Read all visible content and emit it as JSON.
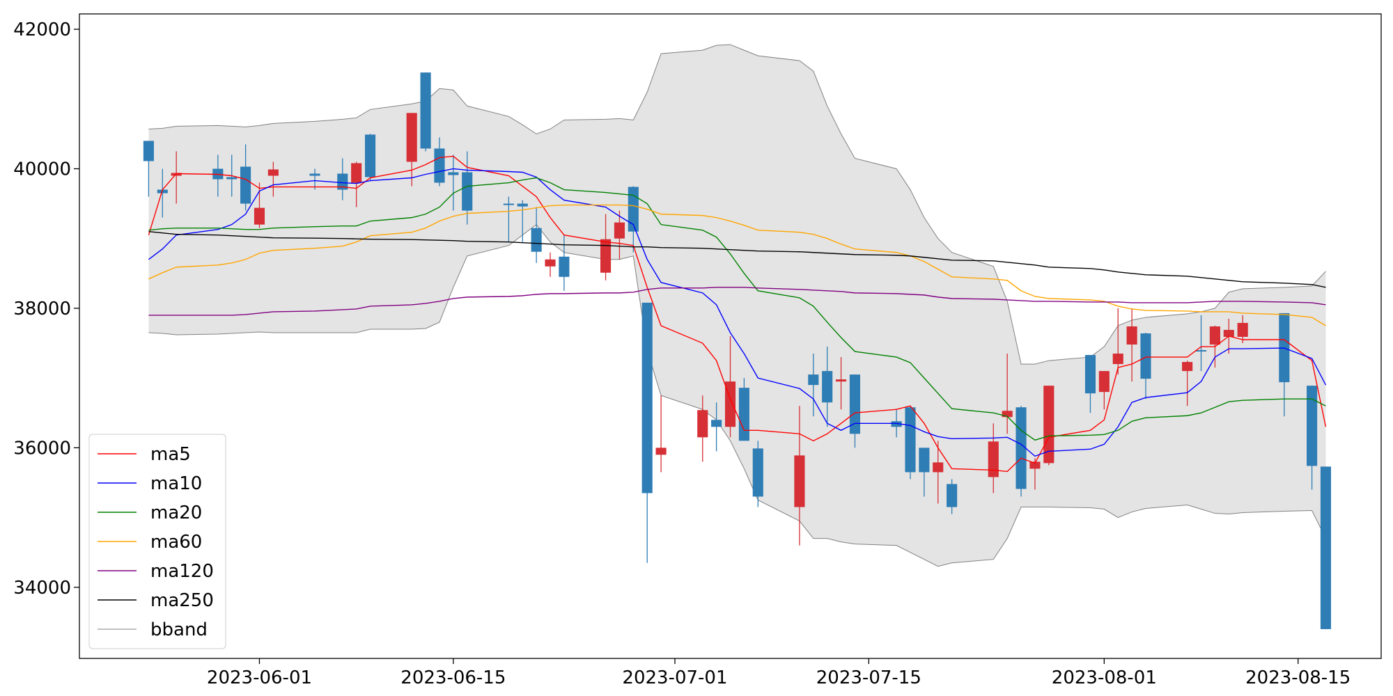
{
  "chart_data": {
    "type": "candlestick",
    "x": [
      "2023-05-24",
      "2023-05-25",
      "2023-05-26",
      "2023-05-29",
      "2023-05-30",
      "2023-05-31",
      "2023-06-01",
      "2023-06-02",
      "2023-06-05",
      "2023-06-07",
      "2023-06-08",
      "2023-06-09",
      "2023-06-12",
      "2023-06-13",
      "2023-06-14",
      "2023-06-15",
      "2023-06-16",
      "2023-06-19",
      "2023-06-20",
      "2023-06-21",
      "2023-06-22",
      "2023-06-23",
      "2023-06-26",
      "2023-06-27",
      "2023-06-28",
      "2023-06-29",
      "2023-06-30",
      "2023-07-03",
      "2023-07-04",
      "2023-07-05",
      "2023-07-06",
      "2023-07-07",
      "2023-07-10",
      "2023-07-11",
      "2023-07-12",
      "2023-07-13",
      "2023-07-14",
      "2023-07-17",
      "2023-07-18",
      "2023-07-19",
      "2023-07-20",
      "2023-07-21",
      "2023-07-24",
      "2023-07-25",
      "2023-07-26",
      "2023-07-27",
      "2023-07-28",
      "2023-07-31",
      "2023-08-01",
      "2023-08-02",
      "2023-08-03",
      "2023-08-04",
      "2023-08-07",
      "2023-08-08",
      "2023-08-09",
      "2023-08-10",
      "2023-08-11",
      "2023-08-14",
      "2023-08-16",
      "2023-08-17"
    ],
    "open": [
      40400,
      39700,
      39900,
      40000,
      39880,
      40030,
      39200,
      39900,
      39930,
      39930,
      39800,
      40490,
      40100,
      41380,
      40290,
      39950,
      39950,
      39500,
      39500,
      39150,
      38600,
      38740,
      38510,
      39000,
      39740,
      38080,
      35900,
      36150,
      36400,
      36300,
      36860,
      35990,
      35150,
      37050,
      37100,
      36950,
      37050,
      36380,
      36580,
      36000,
      35650,
      35480,
      35580,
      36440,
      36580,
      35700,
      35780,
      37330,
      36800,
      37200,
      37480,
      37640,
      37100,
      37400,
      37480,
      37590,
      37590,
      37930,
      36890,
      35730
    ],
    "high": [
      40400,
      40000,
      40250,
      40200,
      40200,
      40350,
      39800,
      40100,
      40000,
      40150,
      40100,
      40500,
      40800,
      41380,
      40450,
      40200,
      40250,
      39600,
      39550,
      39450,
      38800,
      39050,
      39350,
      39400,
      39750,
      38080,
      36750,
      36750,
      36650,
      37600,
      37000,
      36100,
      36600,
      37350,
      37450,
      37300,
      37050,
      36550,
      36600,
      36000,
      36100,
      35550,
      36350,
      37350,
      36600,
      35850,
      36890,
      37330,
      37100,
      38000,
      38000,
      37650,
      37250,
      37900,
      37750,
      37850,
      37900,
      37930,
      36890,
      35730
    ],
    "low": [
      39600,
      39300,
      39500,
      39600,
      39600,
      39400,
      39150,
      39600,
      39700,
      39550,
      39450,
      39830,
      39750,
      40250,
      39750,
      39400,
      39200,
      38950,
      38950,
      38650,
      38450,
      38250,
      38400,
      38700,
      38800,
      34350,
      35650,
      35800,
      35950,
      36150,
      36100,
      35150,
      34600,
      36450,
      36300,
      36550,
      36000,
      36150,
      35550,
      35300,
      35200,
      35050,
      35350,
      36200,
      35300,
      35400,
      35750,
      36500,
      36550,
      37050,
      36950,
      36700,
      36600,
      37100,
      37150,
      37350,
      37500,
      36450,
      35400,
      33400
    ],
    "close": [
      40110,
      39650,
      39940,
      39850,
      39850,
      39500,
      39440,
      39990,
      39900,
      39700,
      40080,
      39880,
      40800,
      40290,
      39800,
      39910,
      39400,
      39480,
      39460,
      38810,
      38700,
      38450,
      38990,
      39230,
      39100,
      35350,
      36000,
      36540,
      36300,
      36950,
      36100,
      35300,
      35890,
      36900,
      36650,
      36980,
      36200,
      36300,
      35650,
      35650,
      35790,
      35150,
      36090,
      36530,
      35410,
      35800,
      36890,
      36780,
      37100,
      37350,
      37740,
      36990,
      37230,
      37380,
      37740,
      37690,
      37790,
      36940,
      35740,
      33400
    ],
    "up_color": "#d62f35",
    "down_color": "#2e7db5",
    "series": [
      {
        "name": "ma5",
        "color": "#ff0000",
        "values": [
          39050,
          39700,
          39930,
          39920,
          39900,
          39850,
          39720,
          39740,
          39740,
          39740,
          39720,
          39870,
          39980,
          40060,
          40160,
          40180,
          40020,
          39900,
          39750,
          39600,
          39300,
          39050,
          38950,
          38930,
          38900,
          38300,
          37750,
          37500,
          37250,
          36700,
          36250,
          36250,
          36200,
          36100,
          36200,
          36350,
          36500,
          36550,
          36600,
          36350,
          36000,
          35700,
          35680,
          35660,
          35850,
          35780,
          36150,
          36250,
          36400,
          37150,
          37200,
          37300,
          37300,
          37450,
          37450,
          37600,
          37550,
          37550,
          37250,
          36300
        ]
      },
      {
        "name": "ma10",
        "color": "#0000ff",
        "values": [
          38700,
          38850,
          39050,
          39130,
          39200,
          39350,
          39680,
          39770,
          39830,
          39800,
          39790,
          39830,
          39870,
          39920,
          39960,
          40000,
          39980,
          39960,
          39950,
          39880,
          39700,
          39550,
          39450,
          39320,
          39200,
          38700,
          38370,
          38220,
          38050,
          37650,
          37350,
          37000,
          36850,
          36700,
          36350,
          36250,
          36350,
          36350,
          36320,
          36230,
          36160,
          36130,
          36140,
          36150,
          36050,
          35880,
          35950,
          35980,
          36050,
          36300,
          36650,
          36720,
          36790,
          36950,
          37300,
          37420,
          37420,
          37430,
          37280,
          36900
        ]
      },
      {
        "name": "ma20",
        "color": "#008000",
        "values": [
          39120,
          39140,
          39150,
          39150,
          39140,
          39130,
          39130,
          39150,
          39170,
          39180,
          39180,
          39250,
          39300,
          39350,
          39450,
          39650,
          39750,
          39800,
          39840,
          39870,
          39800,
          39700,
          39660,
          39640,
          39620,
          39500,
          39200,
          39120,
          39020,
          38780,
          38500,
          38250,
          38150,
          38030,
          37800,
          37580,
          37380,
          37300,
          37220,
          37000,
          36780,
          36560,
          36500,
          36450,
          36250,
          36110,
          36170,
          36180,
          36190,
          36250,
          36380,
          36430,
          36460,
          36500,
          36580,
          36660,
          36680,
          36700,
          36700,
          36600
        ]
      },
      {
        "name": "ma60",
        "color": "#ffa500",
        "values": [
          38420,
          38510,
          38590,
          38620,
          38650,
          38700,
          38790,
          38830,
          38860,
          38890,
          38950,
          39040,
          39090,
          39150,
          39250,
          39320,
          39360,
          39390,
          39410,
          39440,
          39470,
          39480,
          39480,
          39480,
          39470,
          39420,
          39350,
          39330,
          39300,
          39250,
          39190,
          39120,
          39090,
          39060,
          39000,
          38920,
          38850,
          38800,
          38750,
          38670,
          38560,
          38450,
          38420,
          38400,
          38250,
          38170,
          38140,
          38120,
          38100,
          38030,
          37990,
          37970,
          37960,
          37950,
          37950,
          37950,
          37930,
          37910,
          37870,
          37750
        ]
      },
      {
        "name": "ma120",
        "color": "#800080",
        "values": [
          37900,
          37900,
          37900,
          37900,
          37900,
          37910,
          37930,
          37950,
          37960,
          37980,
          37990,
          38030,
          38050,
          38070,
          38100,
          38140,
          38160,
          38170,
          38180,
          38200,
          38210,
          38210,
          38220,
          38220,
          38230,
          38270,
          38290,
          38290,
          38300,
          38300,
          38300,
          38290,
          38270,
          38260,
          38250,
          38240,
          38220,
          38210,
          38200,
          38190,
          38160,
          38140,
          38130,
          38120,
          38110,
          38100,
          38100,
          38090,
          38090,
          38090,
          38080,
          38080,
          38080,
          38090,
          38100,
          38100,
          38100,
          38090,
          38080,
          38050
        ]
      },
      {
        "name": "ma250",
        "color": "#000000",
        "values": [
          39100,
          39080,
          39060,
          39050,
          39040,
          39030,
          39020,
          39010,
          39005,
          39000,
          38995,
          38990,
          38985,
          38980,
          38975,
          38970,
          38960,
          38950,
          38940,
          38930,
          38920,
          38910,
          38900,
          38890,
          38880,
          38880,
          38870,
          38860,
          38850,
          38840,
          38830,
          38820,
          38810,
          38800,
          38790,
          38780,
          38770,
          38760,
          38750,
          38730,
          38710,
          38690,
          38680,
          38660,
          38640,
          38620,
          38590,
          38570,
          38550,
          38520,
          38500,
          38480,
          38460,
          38440,
          38420,
          38400,
          38380,
          38360,
          38340,
          38300
        ]
      }
    ],
    "bband": {
      "name": "bband",
      "color": "#808080",
      "fill": "#e4e4e4",
      "upper": [
        40570,
        40580,
        40610,
        40620,
        40610,
        40600,
        40620,
        40650,
        40680,
        40710,
        40730,
        40850,
        40930,
        40970,
        41150,
        41130,
        40900,
        40750,
        40630,
        40500,
        40570,
        40700,
        40710,
        40720,
        40700,
        41100,
        41650,
        41700,
        41770,
        41780,
        41700,
        41620,
        41550,
        41400,
        40900,
        40500,
        40150,
        40000,
        39700,
        39300,
        39000,
        38800,
        38600,
        38100,
        37200,
        37200,
        37250,
        37300,
        37450,
        37750,
        37830,
        37870,
        37920,
        37950,
        38000,
        38230,
        38280,
        38300,
        38320,
        38530
      ],
      "lower": [
        37650,
        37640,
        37620,
        37630,
        37640,
        37650,
        37660,
        37650,
        37650,
        37650,
        37650,
        37700,
        37700,
        37710,
        37800,
        38300,
        38750,
        38900,
        39050,
        39200,
        38950,
        38800,
        38700,
        38700,
        38750,
        37400,
        36750,
        36550,
        36400,
        36100,
        35700,
        35250,
        34950,
        34700,
        34700,
        34650,
        34620,
        34600,
        34500,
        34400,
        34300,
        34350,
        34400,
        34700,
        35150,
        35150,
        35150,
        35140,
        35120,
        35000,
        35080,
        35130,
        35180,
        35120,
        35060,
        35050,
        35070,
        35090,
        35100,
        34700
      ]
    },
    "xlim": [
      "2023-05-19",
      "2023-08-21"
    ],
    "xticks": [
      "2023-06-01",
      "2023-06-15",
      "2023-07-01",
      "2023-07-15",
      "2023-08-01",
      "2023-08-15"
    ],
    "ylim": [
      32980,
      42220
    ],
    "yticks": [
      34000,
      36000,
      38000,
      40000,
      42000
    ],
    "legend": "lower left"
  }
}
